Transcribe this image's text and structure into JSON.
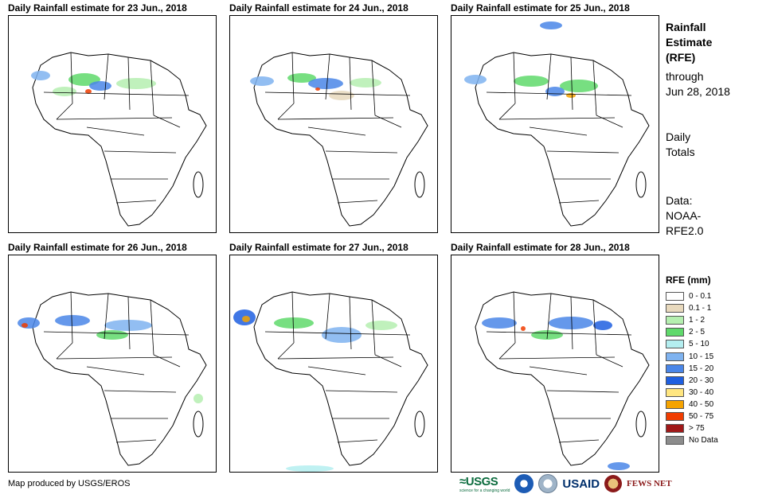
{
  "panels": [
    {
      "title": "Daily Rainfall estimate for 23 Jun., 2018"
    },
    {
      "title": "Daily Rainfall estimate for 24 Jun., 2018"
    },
    {
      "title": "Daily Rainfall estimate for 25 Jun., 2018"
    },
    {
      "title": "Daily Rainfall estimate for 26 Jun., 2018"
    },
    {
      "title": "Daily Rainfall estimate for 27 Jun., 2018"
    },
    {
      "title": "Daily Rainfall estimate for 28 Jun., 2018"
    }
  ],
  "sidebar": {
    "title_line1": "Rainfall",
    "title_line2": "Estimate",
    "title_line3": "(RFE)",
    "through_label": "through",
    "through_date": "Jun 28, 2018",
    "totals_line1": "Daily",
    "totals_line2": "Totals",
    "data_line1": "Data:",
    "data_line2": "NOAA-",
    "data_line3": "RFE2.0"
  },
  "legend": {
    "title": "RFE (mm)",
    "items": [
      {
        "label": "0 - 0.1",
        "color": "#ffffff"
      },
      {
        "label": "0.1 - 1",
        "color": "#e8d9bd"
      },
      {
        "label": "1 - 2",
        "color": "#b5efb0"
      },
      {
        "label": "2 - 5",
        "color": "#5fd96b"
      },
      {
        "label": "5 - 10",
        "color": "#b4eef0"
      },
      {
        "label": "10 - 15",
        "color": "#7fb3f0"
      },
      {
        "label": "15 - 20",
        "color": "#4a86e8"
      },
      {
        "label": "20 - 30",
        "color": "#1f5fe0"
      },
      {
        "label": "30 - 40",
        "color": "#ffe680"
      },
      {
        "label": "40 - 50",
        "color": "#f5a300"
      },
      {
        "label": "50 - 75",
        "color": "#f03c00"
      },
      {
        "label": "> 75",
        "color": "#a01818"
      },
      {
        "label": "No Data",
        "color": "#8c8c8c"
      }
    ]
  },
  "footer": {
    "credit": "Map produced by USGS/EROS",
    "logo_usgs": "≈USGS",
    "logo_usgs_tagline": "science for a changing world",
    "logo_usaid": "USAID",
    "logo_fews": "FEWS NET"
  }
}
